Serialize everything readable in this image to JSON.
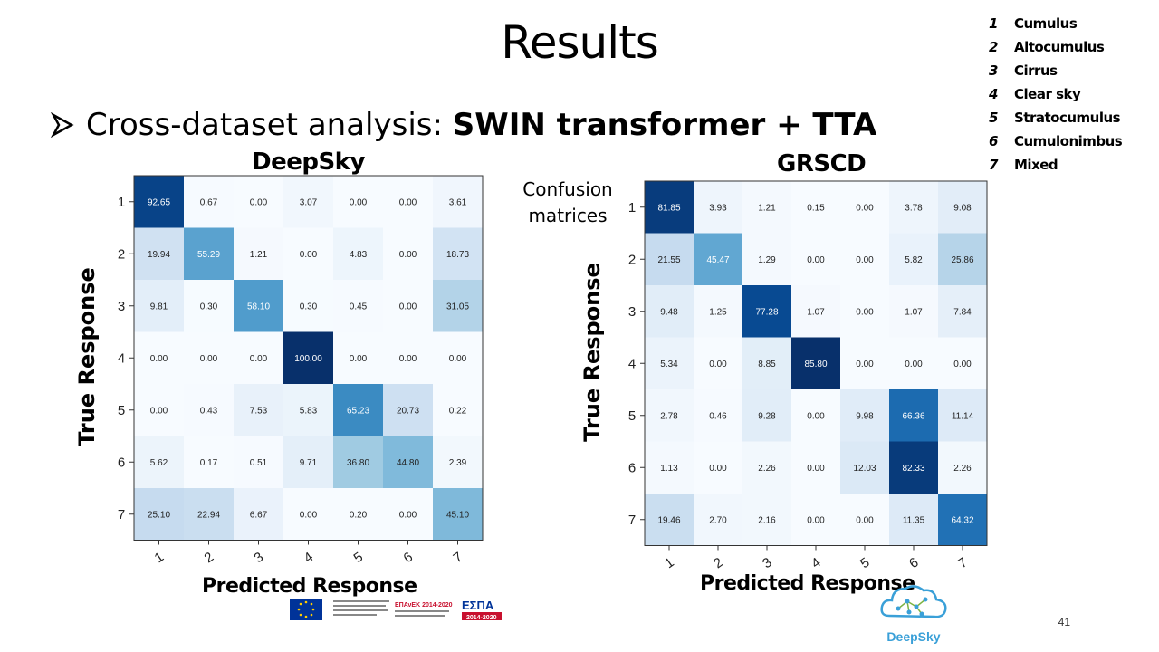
{
  "slide": {
    "title": "Results",
    "bullet_prefix": "Cross-dataset analysis: ",
    "bullet_bold": "SWIN transformer + TTA",
    "confusion_label_line1": "Confusion",
    "confusion_label_line2": "matrices",
    "page_number": "41",
    "logo_text": "DeepSky",
    "funding_text": "ΕΠΑνΕΚ 2014-2020",
    "espa_text": "ΕΣΠΑ",
    "espa_years": "2014-2020"
  },
  "legend": [
    {
      "num": "1",
      "label": "Cumulus"
    },
    {
      "num": "2",
      "label": "Altocumulus"
    },
    {
      "num": "3",
      "label": "Cirrus"
    },
    {
      "num": "4",
      "label": "Clear sky"
    },
    {
      "num": "5",
      "label": "Stratocumulus"
    },
    {
      "num": "6",
      "label": "Cumulonimbus"
    },
    {
      "num": "7",
      "label": "Mixed"
    }
  ],
  "colors": {
    "cmap": "Blues",
    "arrow": "#000000",
    "logo": "#3aa0d8",
    "eu_blue": "#003399",
    "espa_red": "#c8102e"
  },
  "chart_data": [
    {
      "type": "heatmap",
      "title": "DeepSky",
      "xlabel": "Predicted Response",
      "ylabel": "True Response",
      "row_labels": [
        "1",
        "2",
        "3",
        "4",
        "5",
        "6",
        "7"
      ],
      "col_labels": [
        "1",
        "2",
        "3",
        "4",
        "5",
        "6",
        "7"
      ],
      "values": [
        [
          92.65,
          0.67,
          0.0,
          3.07,
          0.0,
          0.0,
          3.61
        ],
        [
          19.94,
          55.29,
          1.21,
          0.0,
          4.83,
          0.0,
          18.73
        ],
        [
          9.81,
          0.3,
          58.1,
          0.3,
          0.45,
          0.0,
          31.05
        ],
        [
          0.0,
          0.0,
          0.0,
          100.0,
          0.0,
          0.0,
          0.0
        ],
        [
          0.0,
          0.43,
          7.53,
          5.83,
          65.23,
          20.73,
          0.22
        ],
        [
          5.62,
          0.17,
          0.51,
          9.71,
          36.8,
          44.8,
          2.39
        ],
        [
          25.1,
          22.94,
          6.67,
          0.0,
          0.2,
          0.0,
          45.1
        ]
      ],
      "vmax": 100
    },
    {
      "type": "heatmap",
      "title": "GRSCD",
      "xlabel": "Predicted Response",
      "ylabel": "True Response",
      "row_labels": [
        "1",
        "2",
        "3",
        "4",
        "5",
        "6",
        "7"
      ],
      "col_labels": [
        "1",
        "2",
        "3",
        "4",
        "5",
        "6",
        "7"
      ],
      "values": [
        [
          81.85,
          3.93,
          1.21,
          0.15,
          0.0,
          3.78,
          9.08
        ],
        [
          21.55,
          45.47,
          1.29,
          0.0,
          0.0,
          5.82,
          25.86
        ],
        [
          9.48,
          1.25,
          77.28,
          1.07,
          0.0,
          1.07,
          7.84
        ],
        [
          5.34,
          0.0,
          8.85,
          85.8,
          0.0,
          0.0,
          0.0
        ],
        [
          2.78,
          0.46,
          9.28,
          0.0,
          9.98,
          66.36,
          11.14
        ],
        [
          1.13,
          0.0,
          2.26,
          0.0,
          12.03,
          82.33,
          2.26
        ],
        [
          19.46,
          2.7,
          2.16,
          0.0,
          0.0,
          11.35,
          64.32
        ]
      ],
      "vmax": 85.8
    }
  ]
}
